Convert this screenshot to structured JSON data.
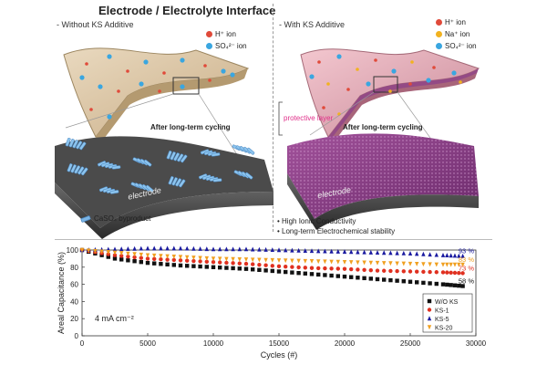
{
  "title": "Electrode / Electrolyte Interface",
  "left_panel": {
    "label": "- Without KS Additive",
    "legend": [
      {
        "text": "H⁺ ion",
        "color": "#e04a3a"
      },
      {
        "text": "SO₄²⁻ ion",
        "color": "#3aa6e0"
      }
    ],
    "cycling_label": "After long-term cycling",
    "electrode_label": "electrode",
    "byproduct_label": "CaSO₄ byproduct"
  },
  "right_panel": {
    "label": "- With KS Additive",
    "legend": [
      {
        "text": "H⁺ ion",
        "color": "#e04a3a"
      },
      {
        "text": "Na⁺ ion",
        "color": "#f2b21f"
      },
      {
        "text": "SO₄²⁻ ion",
        "color": "#3aa6e0"
      }
    ],
    "protective_layer_label": "protective layer",
    "cycling_label": "After long-term cycling",
    "electrode_label": "electrode",
    "bullets": [
      "High Ionic Conductivity",
      "Long-term Electrochemical stability"
    ]
  },
  "chart_data": {
    "type": "scatter",
    "xlabel": "Cycles (#)",
    "ylabel": "Areal Capacitance (%)",
    "xlim": [
      0,
      30000
    ],
    "ylim": [
      0,
      100
    ],
    "xticks": [
      0,
      5000,
      10000,
      15000,
      20000,
      25000,
      30000
    ],
    "yticks": [
      0,
      20,
      40,
      60,
      80,
      100
    ],
    "annotation": "4 mA cm⁻²",
    "legend_position": "bottom-right",
    "end_labels": [
      "93 %",
      "83 %",
      "73 %",
      "58 %"
    ],
    "series": [
      {
        "name": "W/O KS",
        "color": "#111111",
        "marker": "square",
        "x": [
          0,
          2500,
          5000,
          7500,
          10000,
          12500,
          15000,
          17500,
          20000,
          22500,
          25000,
          27500,
          29000
        ],
        "y": [
          100,
          90,
          85,
          82,
          80,
          78,
          75,
          72,
          69,
          66,
          63,
          60,
          58
        ]
      },
      {
        "name": "KS-1",
        "color": "#e03020",
        "marker": "circle",
        "x": [
          0,
          2500,
          5000,
          7500,
          10000,
          12500,
          15000,
          17500,
          20000,
          22500,
          25000,
          27500,
          29000
        ],
        "y": [
          100,
          94,
          90,
          88,
          86,
          84,
          81,
          79,
          78,
          76,
          75,
          74,
          73
        ]
      },
      {
        "name": "KS-5",
        "color": "#1a1aa0",
        "marker": "triangle",
        "x": [
          0,
          2500,
          5000,
          7500,
          10000,
          12500,
          15000,
          17500,
          20000,
          22500,
          25000,
          27500,
          29000
        ],
        "y": [
          100,
          101,
          102,
          102,
          101,
          101,
          100,
          99,
          98,
          97,
          96,
          94,
          93
        ]
      },
      {
        "name": "KS-20",
        "color": "#f0a020",
        "marker": "triangle-down",
        "x": [
          0,
          2500,
          5000,
          7500,
          10000,
          12500,
          15000,
          17500,
          20000,
          22500,
          25000,
          27500,
          29000
        ],
        "y": [
          100,
          97,
          94,
          92,
          90,
          89,
          88,
          87,
          86,
          85,
          84,
          83,
          83
        ]
      }
    ]
  }
}
